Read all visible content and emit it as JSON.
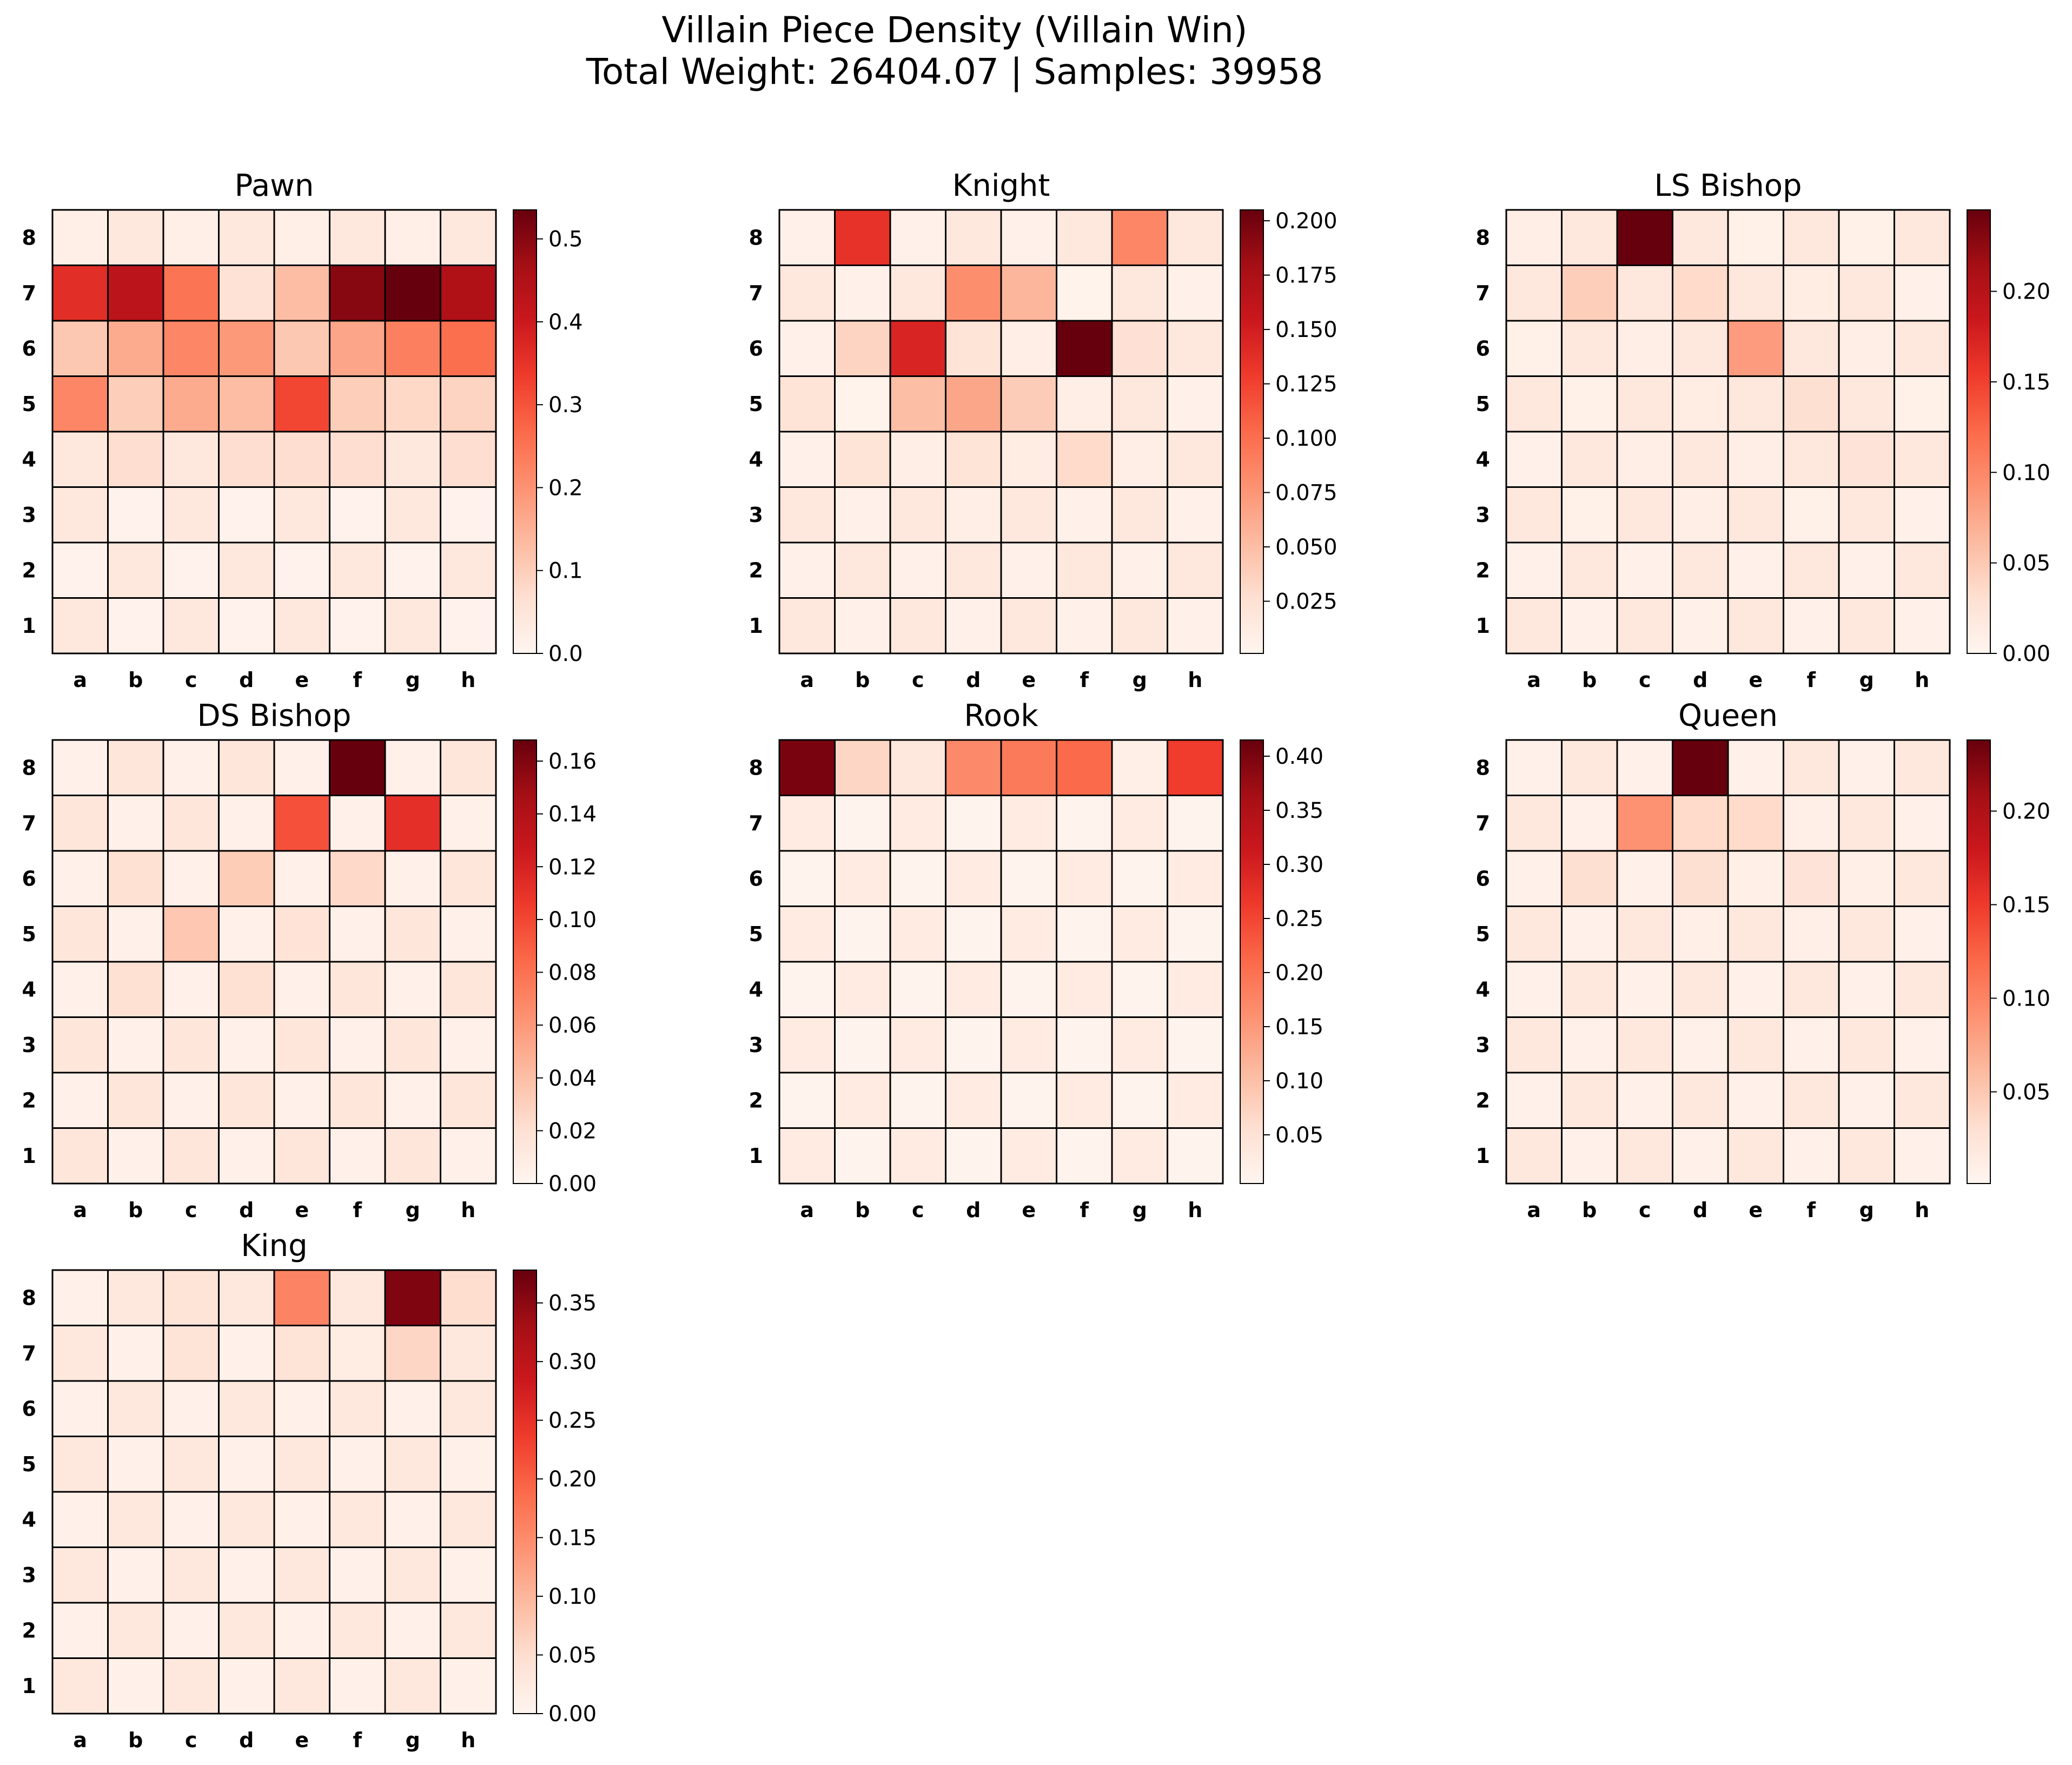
{
  "title_line1": "Villain Piece Density (Villain Win)",
  "title_line2": "Total Weight: 26404.07 | Samples: 39958",
  "colors": {
    "colormap": "Reds",
    "cell_border": "#000000"
  },
  "chart_data": [
    {
      "type": "heatmap",
      "title": "Pawn",
      "files": [
        "a",
        "b",
        "c",
        "d",
        "e",
        "f",
        "g",
        "h"
      ],
      "ranks": [
        "8",
        "7",
        "6",
        "5",
        "4",
        "3",
        "2",
        "1"
      ],
      "vmin": 0,
      "vmax": 0.535,
      "colorbar_ticks": [
        "0.0",
        "0.1",
        "0.2",
        "0.3",
        "0.4",
        "0.5"
      ],
      "values": [
        [
          0.02,
          0.04,
          0.02,
          0.04,
          0.02,
          0.04,
          0.02,
          0.04
        ],
        [
          0.36,
          0.43,
          0.25,
          0.06,
          0.13,
          0.5,
          0.535,
          0.45
        ],
        [
          0.11,
          0.16,
          0.22,
          0.19,
          0.11,
          0.17,
          0.23,
          0.26
        ],
        [
          0.22,
          0.1,
          0.16,
          0.13,
          0.32,
          0.1,
          0.08,
          0.09
        ],
        [
          0.04,
          0.07,
          0.04,
          0.07,
          0.07,
          0.07,
          0.04,
          0.07
        ],
        [
          0.04,
          0.01,
          0.04,
          0.01,
          0.04,
          0.01,
          0.04,
          0.01
        ],
        [
          0.01,
          0.04,
          0.01,
          0.04,
          0.01,
          0.04,
          0.01,
          0.04
        ],
        [
          0.04,
          0.01,
          0.04,
          0.01,
          0.04,
          0.01,
          0.04,
          0.01
        ]
      ]
    },
    {
      "type": "heatmap",
      "title": "Knight",
      "files": [
        "a",
        "b",
        "c",
        "d",
        "e",
        "f",
        "g",
        "h"
      ],
      "ranks": [
        "8",
        "7",
        "6",
        "5",
        "4",
        "3",
        "2",
        "1"
      ],
      "vmin": 0.001,
      "vmax": 0.205,
      "colorbar_ticks": [
        "0.025",
        "0.050",
        "0.075",
        "0.100",
        "0.125",
        "0.150",
        "0.175",
        "0.200"
      ],
      "values": [
        [
          0.006,
          0.135,
          0.006,
          0.018,
          0.006,
          0.018,
          0.085,
          0.018
        ],
        [
          0.018,
          0.006,
          0.018,
          0.08,
          0.055,
          0.004,
          0.018,
          0.006
        ],
        [
          0.006,
          0.035,
          0.145,
          0.022,
          0.01,
          0.205,
          0.025,
          0.018
        ],
        [
          0.022,
          0.004,
          0.05,
          0.065,
          0.04,
          0.01,
          0.018,
          0.006
        ],
        [
          0.006,
          0.022,
          0.01,
          0.022,
          0.012,
          0.03,
          0.01,
          0.018
        ],
        [
          0.018,
          0.006,
          0.018,
          0.01,
          0.018,
          0.006,
          0.018,
          0.006
        ],
        [
          0.006,
          0.018,
          0.006,
          0.018,
          0.006,
          0.018,
          0.006,
          0.018
        ],
        [
          0.018,
          0.006,
          0.018,
          0.006,
          0.018,
          0.006,
          0.018,
          0.006
        ]
      ]
    },
    {
      "type": "heatmap",
      "title": "LS Bishop",
      "files": [
        "a",
        "b",
        "c",
        "d",
        "e",
        "f",
        "g",
        "h"
      ],
      "ranks": [
        "8",
        "7",
        "6",
        "5",
        "4",
        "3",
        "2",
        "1"
      ],
      "vmin": 0,
      "vmax": 0.245,
      "colorbar_ticks": [
        "0.00",
        "0.05",
        "0.10",
        "0.15",
        "0.20"
      ],
      "values": [
        [
          0.01,
          0.02,
          0.245,
          0.02,
          0.008,
          0.02,
          0.008,
          0.02
        ],
        [
          0.02,
          0.045,
          0.02,
          0.035,
          0.02,
          0.012,
          0.02,
          0.006
        ],
        [
          0.008,
          0.02,
          0.01,
          0.02,
          0.085,
          0.02,
          0.01,
          0.02
        ],
        [
          0.02,
          0.008,
          0.02,
          0.012,
          0.02,
          0.03,
          0.02,
          0.008
        ],
        [
          0.006,
          0.02,
          0.01,
          0.02,
          0.01,
          0.02,
          0.025,
          0.02
        ],
        [
          0.02,
          0.008,
          0.02,
          0.01,
          0.02,
          0.008,
          0.02,
          0.006
        ],
        [
          0.006,
          0.02,
          0.006,
          0.02,
          0.006,
          0.02,
          0.006,
          0.02
        ],
        [
          0.02,
          0.006,
          0.02,
          0.006,
          0.02,
          0.006,
          0.02,
          0.006
        ]
      ]
    },
    {
      "type": "heatmap",
      "title": "DS Bishop",
      "files": [
        "a",
        "b",
        "c",
        "d",
        "e",
        "f",
        "g",
        "h"
      ],
      "ranks": [
        "8",
        "7",
        "6",
        "5",
        "4",
        "3",
        "2",
        "1"
      ],
      "vmin": 0,
      "vmax": 0.168,
      "colorbar_ticks": [
        "0.00",
        "0.02",
        "0.04",
        "0.06",
        "0.08",
        "0.10",
        "0.12",
        "0.14",
        "0.16"
      ],
      "values": [
        [
          0.005,
          0.015,
          0.005,
          0.015,
          0.005,
          0.168,
          0.005,
          0.015
        ],
        [
          0.015,
          0.005,
          0.015,
          0.005,
          0.095,
          0.004,
          0.112,
          0.004
        ],
        [
          0.005,
          0.02,
          0.005,
          0.032,
          0.005,
          0.025,
          0.005,
          0.015
        ],
        [
          0.015,
          0.005,
          0.035,
          0.004,
          0.018,
          0.005,
          0.015,
          0.005
        ],
        [
          0.005,
          0.02,
          0.005,
          0.02,
          0.005,
          0.015,
          0.005,
          0.015
        ],
        [
          0.015,
          0.005,
          0.015,
          0.005,
          0.015,
          0.005,
          0.015,
          0.005
        ],
        [
          0.005,
          0.015,
          0.005,
          0.015,
          0.005,
          0.015,
          0.005,
          0.015
        ],
        [
          0.015,
          0.005,
          0.015,
          0.005,
          0.015,
          0.005,
          0.015,
          0.005
        ]
      ]
    },
    {
      "type": "heatmap",
      "title": "Rook",
      "files": [
        "a",
        "b",
        "c",
        "d",
        "e",
        "f",
        "g",
        "h"
      ],
      "ranks": [
        "8",
        "7",
        "6",
        "5",
        "4",
        "3",
        "2",
        "1"
      ],
      "vmin": 0.005,
      "vmax": 0.415,
      "colorbar_ticks": [
        "0.05",
        "0.10",
        "0.15",
        "0.20",
        "0.25",
        "0.30",
        "0.35",
        "0.40"
      ],
      "values": [
        [
          0.4,
          0.07,
          0.04,
          0.17,
          0.19,
          0.21,
          0.02,
          0.26
        ],
        [
          0.03,
          0.01,
          0.03,
          0.01,
          0.03,
          0.01,
          0.03,
          0.01
        ],
        [
          0.01,
          0.03,
          0.01,
          0.03,
          0.01,
          0.03,
          0.01,
          0.03
        ],
        [
          0.03,
          0.01,
          0.03,
          0.01,
          0.03,
          0.01,
          0.03,
          0.01
        ],
        [
          0.01,
          0.03,
          0.01,
          0.03,
          0.01,
          0.03,
          0.01,
          0.03
        ],
        [
          0.03,
          0.01,
          0.03,
          0.01,
          0.03,
          0.01,
          0.03,
          0.01
        ],
        [
          0.01,
          0.03,
          0.01,
          0.03,
          0.01,
          0.03,
          0.01,
          0.03
        ],
        [
          0.03,
          0.01,
          0.03,
          0.01,
          0.03,
          0.01,
          0.03,
          0.01
        ]
      ]
    },
    {
      "type": "heatmap",
      "title": "Queen",
      "files": [
        "a",
        "b",
        "c",
        "d",
        "e",
        "f",
        "g",
        "h"
      ],
      "ranks": [
        "8",
        "7",
        "6",
        "5",
        "4",
        "3",
        "2",
        "1"
      ],
      "vmin": 0.001,
      "vmax": 0.238,
      "colorbar_ticks": [
        "0.05",
        "0.10",
        "0.15",
        "0.20"
      ],
      "values": [
        [
          0.008,
          0.02,
          0.008,
          0.238,
          0.008,
          0.02,
          0.008,
          0.02
        ],
        [
          0.02,
          0.008,
          0.09,
          0.035,
          0.035,
          0.01,
          0.02,
          0.008
        ],
        [
          0.008,
          0.03,
          0.008,
          0.03,
          0.01,
          0.025,
          0.01,
          0.02
        ],
        [
          0.02,
          0.008,
          0.02,
          0.01,
          0.02,
          0.01,
          0.02,
          0.008
        ],
        [
          0.008,
          0.02,
          0.008,
          0.02,
          0.008,
          0.02,
          0.008,
          0.02
        ],
        [
          0.02,
          0.008,
          0.02,
          0.008,
          0.02,
          0.008,
          0.02,
          0.008
        ],
        [
          0.008,
          0.02,
          0.008,
          0.02,
          0.008,
          0.02,
          0.008,
          0.02
        ],
        [
          0.02,
          0.008,
          0.02,
          0.008,
          0.02,
          0.008,
          0.02,
          0.008
        ]
      ]
    },
    {
      "type": "heatmap",
      "title": "King",
      "files": [
        "a",
        "b",
        "c",
        "d",
        "e",
        "f",
        "g",
        "h"
      ],
      "ranks": [
        "8",
        "7",
        "6",
        "5",
        "4",
        "3",
        "2",
        "1"
      ],
      "vmin": 0,
      "vmax": 0.378,
      "colorbar_ticks": [
        "0.00",
        "0.05",
        "0.10",
        "0.15",
        "0.20",
        "0.25",
        "0.30",
        "0.35"
      ],
      "values": [
        [
          0.01,
          0.03,
          0.04,
          0.03,
          0.16,
          0.03,
          0.36,
          0.05
        ],
        [
          0.03,
          0.01,
          0.04,
          0.01,
          0.04,
          0.02,
          0.06,
          0.03
        ],
        [
          0.01,
          0.03,
          0.01,
          0.03,
          0.01,
          0.03,
          0.01,
          0.03
        ],
        [
          0.03,
          0.01,
          0.03,
          0.01,
          0.03,
          0.01,
          0.03,
          0.01
        ],
        [
          0.01,
          0.03,
          0.01,
          0.03,
          0.01,
          0.03,
          0.01,
          0.03
        ],
        [
          0.03,
          0.01,
          0.03,
          0.01,
          0.03,
          0.01,
          0.03,
          0.01
        ],
        [
          0.01,
          0.03,
          0.01,
          0.03,
          0.01,
          0.03,
          0.01,
          0.03
        ],
        [
          0.03,
          0.01,
          0.03,
          0.01,
          0.03,
          0.01,
          0.03,
          0.01
        ]
      ]
    }
  ]
}
